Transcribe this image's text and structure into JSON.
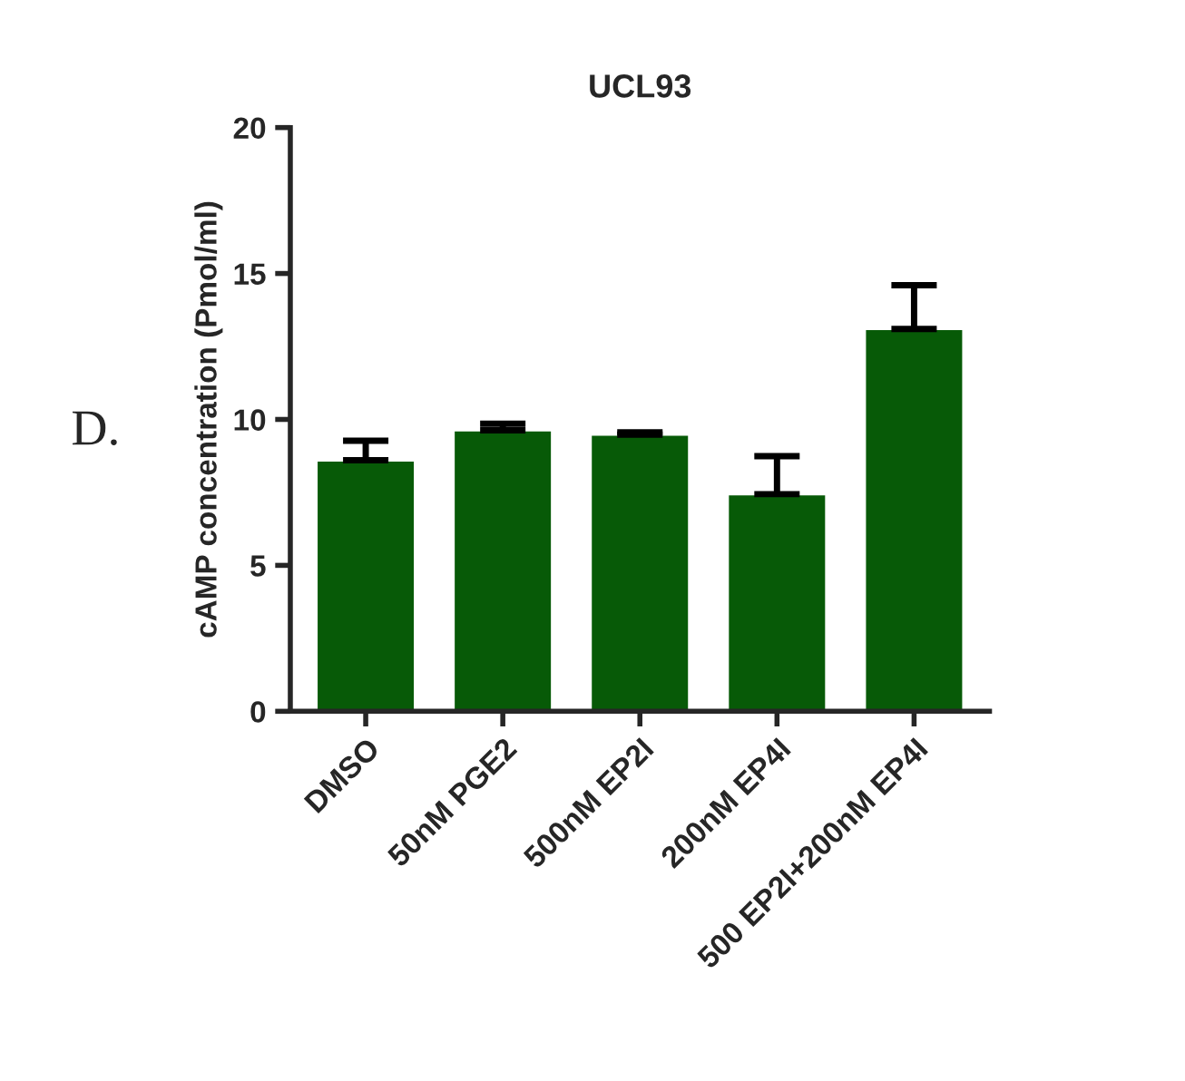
{
  "chart_data": {
    "type": "bar",
    "title": "UCL93",
    "ylabel": "cAMP concentration (Pmol/ml)",
    "categories": [
      "DMSO",
      "50nM PGE2",
      "500nM EP2I",
      "200nM EP4I",
      "500 EP2I+200nM EP4I"
    ],
    "values": [
      8.6,
      9.63,
      9.48,
      7.44,
      13.1
    ],
    "errors": [
      [
        8.6,
        9.27
      ],
      [
        9.63,
        9.85
      ],
      [
        9.48,
        9.56
      ],
      [
        7.44,
        8.74
      ],
      [
        13.1,
        14.6
      ]
    ],
    "color": "#075a07",
    "ylim": [
      0,
      20
    ],
    "yticks": [
      0,
      5,
      10,
      15,
      20
    ],
    "annotations": [
      "D."
    ]
  }
}
